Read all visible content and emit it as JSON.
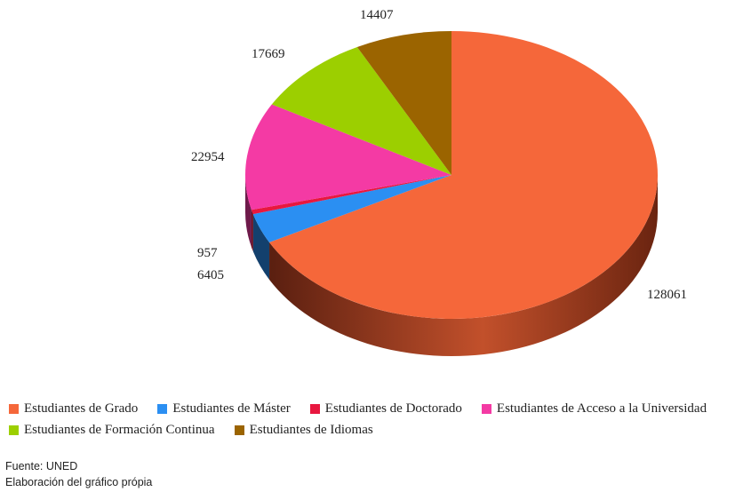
{
  "chart_data": {
    "type": "pie",
    "title": "",
    "categories": [
      "Estudiantes de Grado",
      "Estudiantes de Máster",
      "Estudiantes de Doctorado",
      "Estudiantes de Acceso a la Universidad",
      "Estudiantes de Formación Continua",
      "Estudiantes de Idiomas"
    ],
    "values": [
      128061,
      6405,
      957,
      22954,
      17669,
      14407
    ],
    "data_labels": [
      "128061",
      "6405",
      "957",
      "22954",
      "17669",
      "14407"
    ],
    "colors": [
      "#f5673a",
      "#2b8ff2",
      "#e8173f",
      "#f43aa4",
      "#9ccf00",
      "#9b6400"
    ],
    "legend_position": "bottom",
    "style": "3d"
  },
  "legend": {
    "row1": [
      "Estudiantes de Grado",
      "Estudiantes de Máster",
      "Estudiantes de Doctorado",
      "Estudiantes de Acceso a la Universidad"
    ],
    "row2": [
      "Estudiantes de Formación Continua",
      "Estudiantes de Idiomas"
    ]
  },
  "source": {
    "line1": "Fuente:  UNED",
    "line2": "Elaboración del gráfico própia"
  }
}
